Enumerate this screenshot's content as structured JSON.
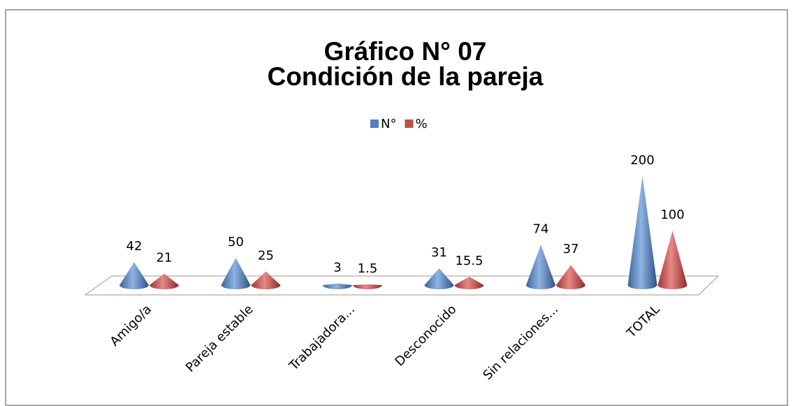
{
  "chart_data": {
    "type": "cone",
    "title": "Gráfico N° 07",
    "subtitle": "Condición de la pareja",
    "categories": [
      "Amigo/a",
      "Pareja estable",
      "Trabajadora...",
      "Desconocido",
      "Sin relaciones...",
      "TOTAL"
    ],
    "series": [
      {
        "name": "N°",
        "color": "#4f81bd",
        "values": [
          42,
          50,
          3,
          31,
          74,
          200
        ]
      },
      {
        "name": "%",
        "color": "#c0504d",
        "values": [
          21,
          25,
          1.5,
          15.5,
          37,
          100
        ]
      }
    ],
    "legend": "top"
  }
}
